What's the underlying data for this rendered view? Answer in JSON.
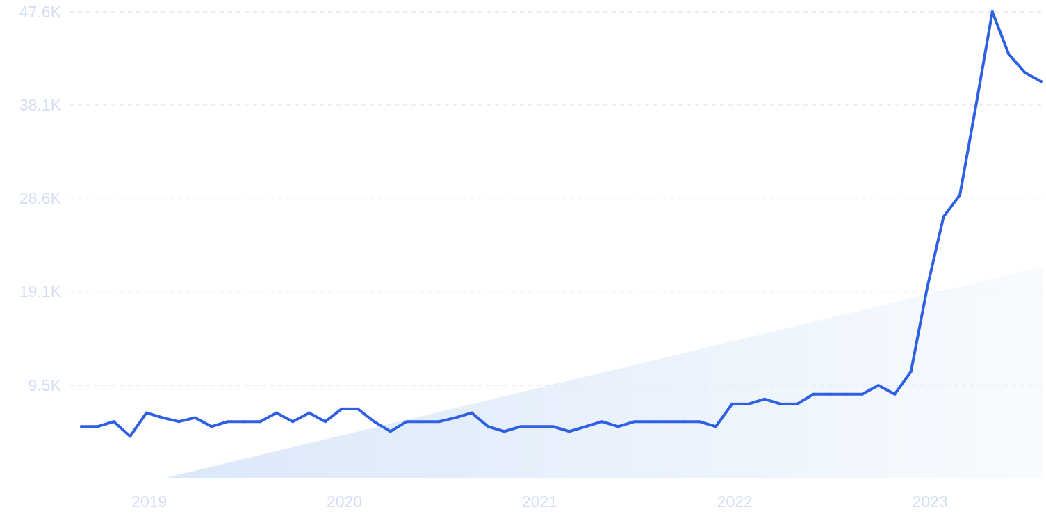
{
  "chart_data": {
    "type": "line",
    "xlabel": "",
    "ylabel": "",
    "grid": true,
    "x_range": [
      "2018-09",
      "2023-08"
    ],
    "ylim": [
      0,
      47600
    ],
    "y_ticks": [
      9500,
      19100,
      28600,
      38100,
      47600
    ],
    "y_tick_labels": [
      "9.5K",
      "19.1K",
      "28.6K",
      "38.1K",
      "47.6K"
    ],
    "x_ticks": [
      "2019",
      "2020",
      "2021",
      "2022",
      "2023"
    ],
    "colors": {
      "line": "#2f5fe3",
      "trend_area": "#e6effc",
      "tick_text": "#d3ddf3",
      "grid": "#dde4ea"
    },
    "trend_area": {
      "from": {
        "x": "2019-02",
        "y": 0
      },
      "to": {
        "x": "2023-08",
        "y": 21600
      }
    },
    "series": [
      {
        "x": [
          "2018-09",
          "2018-10",
          "2018-11",
          "2018-12",
          "2019-01",
          "2019-02",
          "2019-03",
          "2019-04",
          "2019-05",
          "2019-06",
          "2019-07",
          "2019-08",
          "2019-09",
          "2019-10",
          "2019-11",
          "2019-12",
          "2020-01",
          "2020-02",
          "2020-03",
          "2020-04",
          "2020-05",
          "2020-06",
          "2020-07",
          "2020-08",
          "2020-09",
          "2020-10",
          "2020-11",
          "2020-12",
          "2021-01",
          "2021-02",
          "2021-03",
          "2021-04",
          "2021-05",
          "2021-06",
          "2021-07",
          "2021-08",
          "2021-09",
          "2021-10",
          "2021-11",
          "2021-12",
          "2022-01",
          "2022-02",
          "2022-03",
          "2022-04",
          "2022-05",
          "2022-06",
          "2022-07",
          "2022-08",
          "2022-09",
          "2022-10",
          "2022-11",
          "2022-12",
          "2023-01",
          "2023-02",
          "2023-03",
          "2023-04",
          "2023-05",
          "2023-06",
          "2023-07",
          "2023-08"
        ],
        "values": [
          5300,
          5300,
          5800,
          4300,
          6700,
          6200,
          5800,
          6200,
          5300,
          5800,
          5800,
          5800,
          6700,
          5800,
          6700,
          5800,
          7100,
          7100,
          5800,
          4800,
          5800,
          5800,
          5800,
          6200,
          6700,
          5300,
          4800,
          5300,
          5300,
          5300,
          4800,
          5300,
          5800,
          5300,
          5800,
          5800,
          5800,
          5800,
          5800,
          5300,
          7600,
          7600,
          8100,
          7600,
          7600,
          8600,
          8600,
          8600,
          8600,
          9500,
          8600,
          10900,
          19500,
          26700,
          28900,
          38100,
          47600,
          43300,
          41400,
          40500
        ]
      }
    ]
  }
}
